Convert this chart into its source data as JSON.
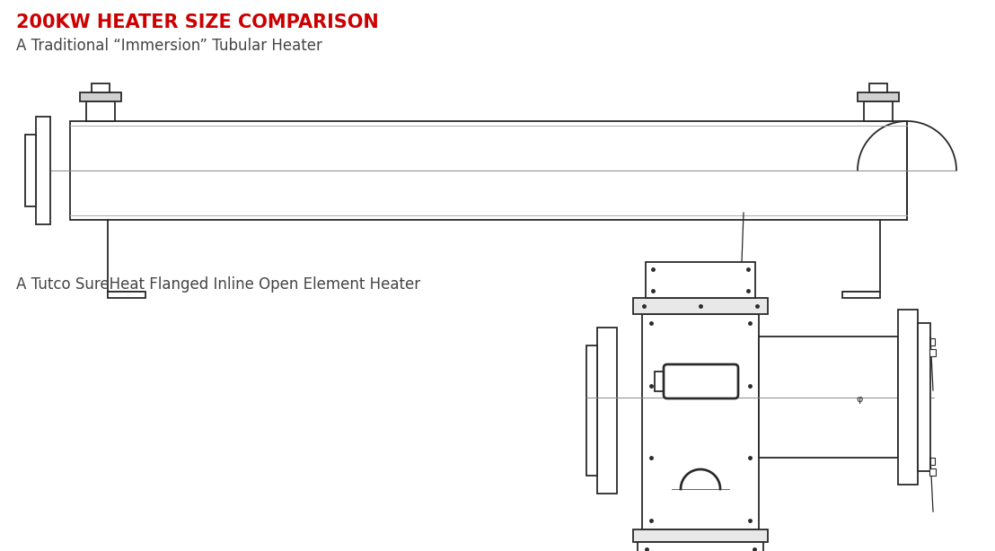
{
  "title": "200KW HEATER SIZE COMPARISON",
  "title_color": "#CC0000",
  "subtitle1": "A Traditional “Immersion” Tubular Heater",
  "subtitle2": "A Tutco SureHeat Flanged Inline Open Element Heater",
  "subtitle_color": "#444444",
  "bg_color": "#ffffff",
  "line_color": "#2a2a2a",
  "line_width": 1.3,
  "fig_w": 11.08,
  "fig_h": 6.14,
  "dpi": 100
}
